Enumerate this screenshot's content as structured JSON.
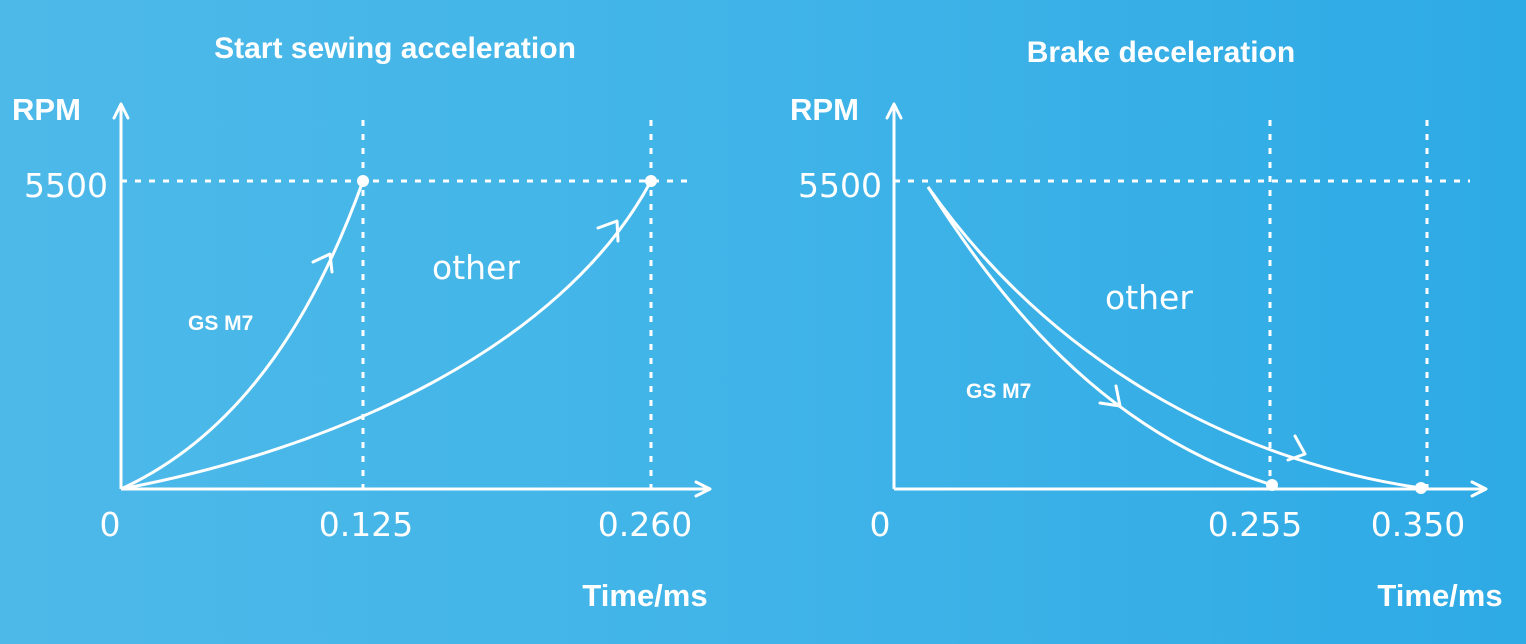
{
  "colors": {
    "background": "#40b4e8",
    "foreground": "#ffffff"
  },
  "chart_data": [
    {
      "type": "line",
      "title": "Start sewing acceleration",
      "xlabel": "Time/ms",
      "ylabel": "RPM",
      "y_tick": "5500",
      "x_ticks": [
        "0",
        "0.125",
        "0.260"
      ],
      "xlim": [
        0,
        0.28
      ],
      "ylim": [
        0,
        5500
      ],
      "grid": false,
      "series": [
        {
          "name": "GS M7",
          "x": [
            0,
            0.125
          ],
          "y": [
            0,
            5500
          ]
        },
        {
          "name": "other",
          "x": [
            0,
            0.26
          ],
          "y": [
            0,
            5500
          ]
        }
      ]
    },
    {
      "type": "line",
      "title": "Brake deceleration",
      "xlabel": "Time/ms",
      "ylabel": "RPM",
      "y_tick": "5500",
      "x_ticks": [
        "0",
        "0.255",
        "0.350"
      ],
      "xlim": [
        0,
        0.37
      ],
      "ylim": [
        0,
        5500
      ],
      "grid": false,
      "series": [
        {
          "name": "GS M7",
          "x": [
            0,
            0.255
          ],
          "y": [
            5500,
            0
          ]
        },
        {
          "name": "other",
          "x": [
            0,
            0.35
          ],
          "y": [
            5500,
            0
          ]
        }
      ]
    }
  ]
}
